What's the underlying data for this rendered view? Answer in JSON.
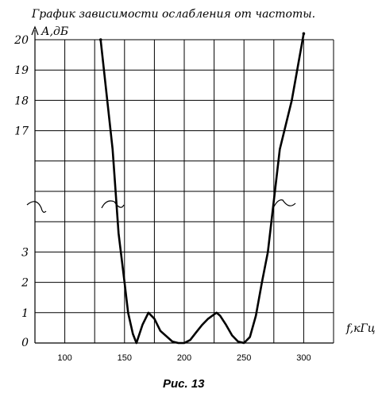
{
  "chart_data": {
    "type": "line",
    "title": "График зависимости ослабления от частоты.",
    "xlabel": "f,кГц",
    "ylabel": "А,дБ",
    "caption": "Рис. 13",
    "x_ticks": [
      "100",
      "150",
      "200",
      "250",
      "300"
    ],
    "y_ticks_lower": [
      "0",
      "1",
      "2",
      "3"
    ],
    "y_ticks_upper": [
      "17",
      "18",
      "19",
      "20"
    ],
    "xlim": [
      75,
      325
    ],
    "grid": true,
    "axis_break": true,
    "series": [
      {
        "x": [
          130,
          140,
          145,
          150,
          153,
          157,
          160,
          165,
          170,
          175,
          180,
          190,
          195,
          200,
          205,
          210,
          215,
          220,
          227,
          230,
          235,
          240,
          245,
          250,
          255,
          260,
          265,
          270,
          280,
          290,
          300
        ],
        "y": [
          20,
          16,
          4,
          2,
          1,
          0.3,
          0,
          0.6,
          1,
          0.8,
          0.4,
          0.05,
          0,
          0,
          0.1,
          0.35,
          0.6,
          0.8,
          1,
          0.9,
          0.6,
          0.25,
          0.05,
          0,
          0.2,
          0.9,
          2,
          3,
          16,
          18,
          20.2
        ]
      }
    ]
  }
}
